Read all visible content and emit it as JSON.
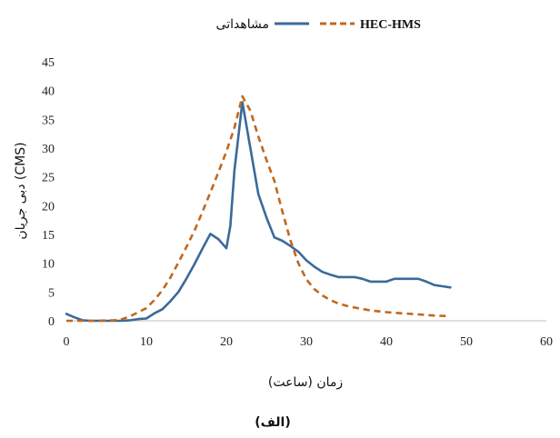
{
  "chart_data": {
    "type": "line",
    "title": "",
    "xlabel": "زمان (ساعت)",
    "ylabel": "دبی جریان (CMS)",
    "caption": "(الف)",
    "xlim": [
      0,
      60
    ],
    "ylim": [
      0,
      45
    ],
    "xticks": [
      0,
      10,
      20,
      30,
      40,
      50,
      60
    ],
    "yticks": [
      0,
      5,
      10,
      15,
      20,
      25,
      30,
      35,
      40,
      45
    ],
    "grid": false,
    "legend_position": "top-center",
    "series": [
      {
        "name": "مشاهداتی",
        "color": "#3a6a9a",
        "style": "solid",
        "x": [
          0,
          1,
          2,
          3,
          4,
          5,
          6,
          7,
          8,
          9,
          10,
          11,
          12,
          13,
          14,
          15,
          16,
          17,
          18,
          19,
          20,
          20.5,
          21,
          22,
          23,
          24,
          25,
          26,
          27,
          28,
          29,
          30,
          31,
          32,
          33,
          34,
          35,
          36,
          37,
          38,
          39,
          40,
          41,
          42,
          43,
          44,
          45,
          46,
          47,
          48
        ],
        "y": [
          1.2,
          0.6,
          0.1,
          0,
          0,
          0,
          0,
          0,
          0.1,
          0.3,
          0.4,
          1.3,
          2,
          3.4,
          5,
          7.3,
          9.8,
          12.5,
          15.1,
          14.2,
          12.6,
          16.5,
          26,
          38,
          30,
          22,
          18,
          14.5,
          13.9,
          13,
          12,
          10.5,
          9.4,
          8.5,
          8,
          7.6,
          7.6,
          7.6,
          7.3,
          6.8,
          6.8,
          6.8,
          7.3,
          7.3,
          7.3,
          7.3,
          6.8,
          6.2,
          6,
          5.8
        ]
      },
      {
        "name": "HEC-HMS",
        "color": "#c0681f",
        "style": "dashed",
        "x": [
          0,
          2,
          4,
          6,
          7,
          8,
          9,
          10,
          11,
          12,
          13,
          14,
          15,
          16,
          17,
          18,
          19,
          20,
          21,
          22,
          23,
          24,
          25,
          26,
          27,
          28,
          29,
          30,
          31,
          32,
          33,
          34,
          35,
          36,
          38,
          40,
          42,
          44,
          46,
          48
        ],
        "y": [
          0,
          0,
          0,
          0.1,
          0.3,
          0.8,
          1.5,
          2.2,
          3.6,
          5.3,
          7.5,
          10.1,
          12.8,
          15.6,
          18.9,
          22.3,
          25.8,
          29.4,
          33.5,
          39,
          36.5,
          32,
          28,
          24.3,
          19,
          14,
          10,
          7.2,
          5.5,
          4.4,
          3.6,
          3,
          2.6,
          2.3,
          1.8,
          1.5,
          1.3,
          1.1,
          0.9,
          0.8
        ]
      }
    ]
  }
}
